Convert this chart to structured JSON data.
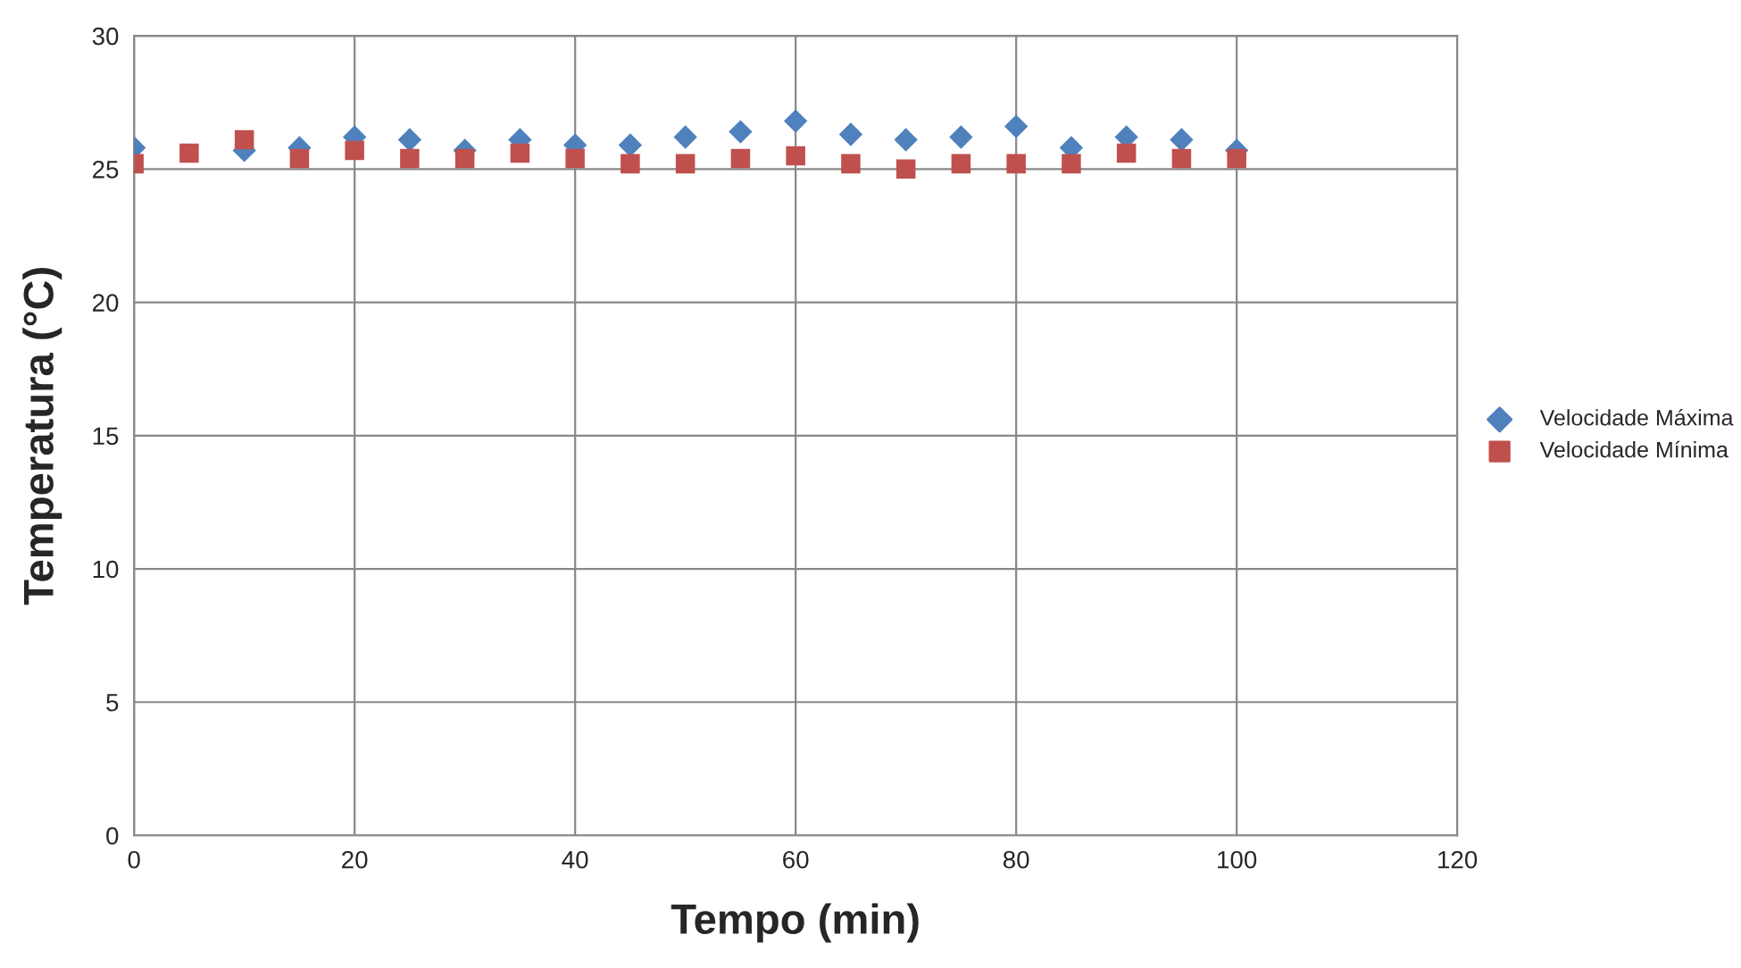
{
  "chart_data": {
    "type": "scatter",
    "xlabel": "Tempo (min)",
    "ylabel": "Temperatura (°C)",
    "x": [
      0,
      5,
      10,
      15,
      20,
      25,
      30,
      35,
      40,
      45,
      50,
      55,
      60,
      65,
      70,
      75,
      80,
      85,
      90,
      95,
      100
    ],
    "series": [
      {
        "name": "Velocidade Máxima",
        "color": "#4f81bd",
        "marker": "diamond",
        "values": [
          25.8,
          null,
          25.7,
          25.8,
          26.2,
          26.1,
          25.7,
          26.1,
          25.9,
          25.9,
          26.2,
          26.4,
          26.8,
          26.3,
          26.1,
          26.2,
          26.6,
          25.8,
          26.2,
          26.1,
          25.7
        ]
      },
      {
        "name": "Velocidade Mínima",
        "color": "#c0504d",
        "marker": "square",
        "values": [
          25.2,
          25.6,
          26.1,
          25.4,
          25.7,
          25.4,
          25.4,
          25.6,
          25.4,
          25.2,
          25.2,
          25.4,
          25.5,
          25.2,
          25.0,
          25.2,
          25.2,
          25.2,
          25.6,
          25.4,
          25.4
        ]
      }
    ],
    "xlim": [
      0,
      120
    ],
    "xticks": [
      0,
      20,
      40,
      60,
      80,
      100,
      120
    ],
    "ylim": [
      0,
      30
    ],
    "yticks": [
      0,
      5,
      10,
      15,
      20,
      25,
      30
    ],
    "grid": true,
    "legend": "right"
  }
}
